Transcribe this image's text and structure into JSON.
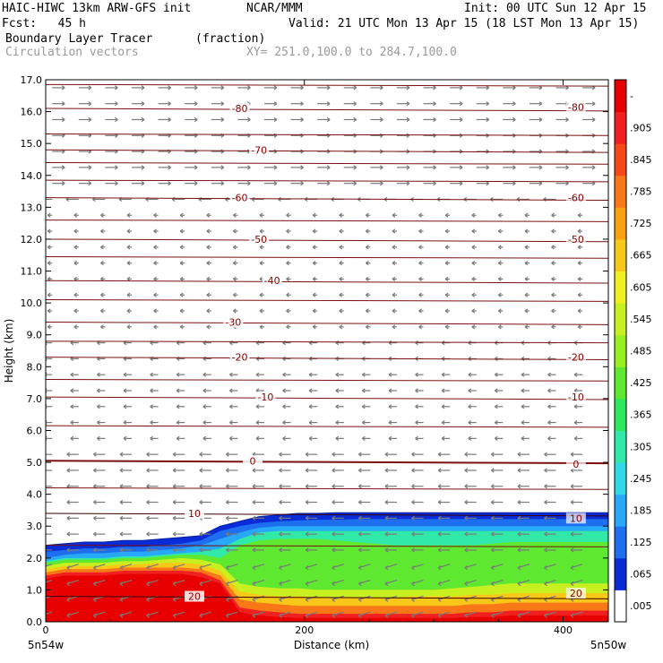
{
  "header": {
    "model": "HAIC-HIWC 13km ARW-GFS init",
    "org": "NCAR/MMM",
    "init": "Init: 00 UTC Sun 12 Apr 15",
    "fcst": "Fcst:   45 h",
    "valid": "Valid: 21 UTC Mon 13 Apr 15 (18 LST Mon 13 Apr 15)",
    "field": "Boundary Layer Tracer",
    "units": "(fraction)",
    "vectors": "Circulation vectors",
    "xy": "XY= 251.0,100.0 to 284.7,100.0"
  },
  "chart_data": {
    "type": "heatmap",
    "xlabel": "Distance (km)",
    "ylabel": "Height (km)",
    "xlim": [
      0,
      435
    ],
    "ylim": [
      0,
      17
    ],
    "x_ticks": [
      "0",
      "200",
      "400"
    ],
    "x_tick_values": [
      0,
      200,
      400
    ],
    "y_ticks": [
      "0.0",
      "1.0",
      "2.0",
      "3.0",
      "4.0",
      "5.0",
      "6.0",
      "7.0",
      "8.0",
      "9.0",
      "10.0",
      "11.0",
      "12.0",
      "13.0",
      "14.0",
      "15.0",
      "16.0",
      "17.0"
    ],
    "x_endpoints": {
      "left": "5n54w",
      "right": "5n50w"
    },
    "colorbar": {
      "labels": [
        ".005",
        ".065",
        ".125",
        ".185",
        ".245",
        ".305",
        ".365",
        ".425",
        ".485",
        ".545",
        ".605",
        ".665",
        ".725",
        ".785",
        ".845",
        ".905",
        "-"
      ],
      "colors": [
        "#ffffff",
        "#0a2cd8",
        "#1e6ef0",
        "#28a8f8",
        "#30d8e8",
        "#30e8a8",
        "#2ee860",
        "#5ee830",
        "#98f020",
        "#c8f020",
        "#f0f020",
        "#f8c818",
        "#f8a010",
        "#f87818",
        "#f84818",
        "#f02020",
        "#e80000"
      ]
    },
    "tracer_field": {
      "top_km": [
        2.4,
        2.45,
        2.5,
        2.5,
        2.55,
        2.55,
        2.6,
        2.65,
        2.7,
        3.0,
        3.15,
        3.3,
        3.35,
        3.4,
        3.4,
        3.42,
        3.42,
        3.42,
        3.42,
        3.42,
        3.42,
        3.42,
        3.42,
        3.42,
        3.42,
        3.42,
        3.42,
        3.42,
        3.42,
        3.42
      ],
      "bands": [
        {
          "level": 0.065,
          "top_km": [
            2.4,
            2.45,
            2.5,
            2.5,
            2.55,
            2.55,
            2.6,
            2.65,
            2.7,
            3.0,
            3.15,
            3.3,
            3.35,
            3.4,
            3.4,
            3.42,
            3.42,
            3.42,
            3.42,
            3.42,
            3.42,
            3.42,
            3.42,
            3.42,
            3.42,
            3.42,
            3.42,
            3.42,
            3.42,
            3.42
          ]
        },
        {
          "level": 0.125,
          "top_km": [
            2.2,
            2.25,
            2.3,
            2.3,
            2.35,
            2.35,
            2.4,
            2.45,
            2.55,
            2.85,
            3.0,
            3.1,
            3.15,
            3.18,
            3.2,
            3.2,
            3.22,
            3.22,
            3.22,
            3.22,
            3.22,
            3.22,
            3.22,
            3.22,
            3.22,
            3.22,
            3.22,
            3.22,
            3.22,
            3.22
          ]
        },
        {
          "level": 0.185,
          "top_km": [
            2.0,
            2.1,
            2.15,
            2.15,
            2.2,
            2.2,
            2.25,
            2.3,
            2.4,
            2.6,
            2.8,
            2.95,
            3.0,
            3.0,
            3.0,
            3.0,
            3.0,
            3.0,
            3.0,
            3.0,
            3.0,
            3.0,
            3.0,
            3.0,
            3.0,
            3.0,
            3.0,
            3.0,
            3.0,
            3.0
          ]
        },
        {
          "level": 0.305,
          "top_km": [
            1.9,
            2.0,
            2.0,
            2.0,
            2.05,
            2.05,
            2.1,
            2.15,
            2.2,
            2.3,
            2.6,
            2.8,
            2.85,
            2.85,
            2.85,
            2.85,
            2.85,
            2.85,
            2.85,
            2.85,
            2.85,
            2.85,
            2.85,
            2.85,
            2.85,
            2.85,
            2.85,
            2.85,
            2.85,
            2.85
          ]
        },
        {
          "level": 0.425,
          "top_km": [
            1.85,
            1.95,
            1.95,
            1.95,
            2.0,
            2.0,
            2.05,
            2.1,
            2.1,
            2.0,
            2.4,
            2.55,
            2.6,
            2.6,
            2.6,
            2.55,
            2.5,
            2.45,
            2.4,
            2.4,
            2.4,
            2.4,
            2.4,
            2.45,
            2.5,
            2.5,
            2.5,
            2.5,
            2.5,
            2.5
          ]
        },
        {
          "level": 0.545,
          "top_km": [
            1.75,
            1.85,
            1.85,
            1.85,
            1.9,
            1.9,
            1.95,
            2.0,
            1.95,
            1.8,
            1.2,
            1.1,
            1.05,
            1.05,
            1.0,
            1.0,
            1.0,
            1.0,
            1.0,
            1.0,
            1.0,
            1.05,
            1.1,
            1.15,
            1.2,
            1.2,
            1.2,
            1.2,
            1.2,
            1.2
          ]
        },
        {
          "level": 0.665,
          "top_km": [
            1.65,
            1.75,
            1.75,
            1.75,
            1.8,
            1.8,
            1.85,
            1.85,
            1.8,
            1.6,
            0.95,
            0.85,
            0.8,
            0.8,
            0.75,
            0.75,
            0.75,
            0.75,
            0.75,
            0.8,
            0.8,
            0.8,
            0.85,
            0.85,
            0.9,
            0.9,
            0.9,
            0.9,
            0.9,
            0.9
          ]
        },
        {
          "level": 0.785,
          "top_km": [
            1.55,
            1.65,
            1.65,
            1.65,
            1.7,
            1.7,
            1.7,
            1.7,
            1.65,
            1.45,
            0.7,
            0.6,
            0.55,
            0.5,
            0.5,
            0.5,
            0.5,
            0.5,
            0.5,
            0.5,
            0.5,
            0.5,
            0.55,
            0.55,
            0.6,
            0.6,
            0.6,
            0.6,
            0.6,
            0.6
          ]
        },
        {
          "level": 0.905,
          "top_km": [
            1.45,
            1.55,
            1.55,
            1.55,
            1.6,
            1.6,
            1.6,
            1.6,
            1.55,
            1.3,
            0.45,
            0.35,
            0.3,
            0.25,
            0.25,
            0.25,
            0.25,
            0.25,
            0.25,
            0.25,
            0.25,
            0.25,
            0.3,
            0.3,
            0.35,
            0.35,
            0.35,
            0.35,
            0.35,
            0.35
          ]
        }
      ],
      "bottom_fill_top_km": [
        1.35,
        1.45,
        1.45,
        1.45,
        1.5,
        1.5,
        1.5,
        1.5,
        1.4,
        1.2,
        0.3,
        0.2,
        0.15,
        0.12,
        0.12,
        0.12,
        0.12,
        0.12,
        0.12,
        0.12,
        0.12,
        0.12,
        0.15,
        0.15,
        0.2,
        0.2,
        0.2,
        0.2,
        0.2,
        0.2
      ]
    },
    "temperature_contours": {
      "values": [
        "-80",
        "-70",
        "-60",
        "-50",
        "-40",
        "-30",
        "-20",
        "-10",
        "0",
        "10",
        "20"
      ],
      "heights_km": [
        16.1,
        14.8,
        13.3,
        12.0,
        10.7,
        9.4,
        8.3,
        7.05,
        5.05,
        3.4,
        0.8
      ],
      "label_x_km": [
        150,
        165,
        150,
        165,
        175,
        145,
        150,
        170,
        160,
        115,
        115
      ],
      "right_label_values": [
        "-80",
        "-60",
        "-50",
        "-20",
        "-10",
        "0",
        "10",
        "20"
      ],
      "right_label_heights_km": [
        16.15,
        13.3,
        12.0,
        8.3,
        7.05,
        4.95,
        3.25,
        0.9
      ]
    }
  }
}
